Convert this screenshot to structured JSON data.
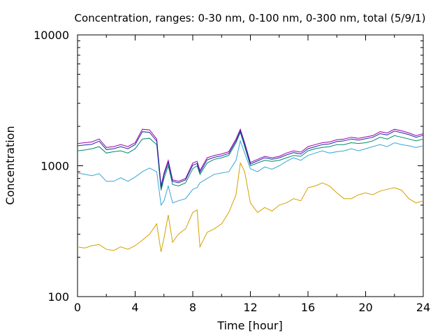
{
  "chart_data": {
    "type": "line",
    "title": "Concentration, ranges: 0-30 nm, 0-100 nm, 0-300 nm, total (5/9/1)",
    "xlabel": "Time [hour]",
    "ylabel": "Concentration",
    "xlim": [
      0,
      24
    ],
    "ylim": [
      100,
      10000
    ],
    "yscale": "log",
    "grid": false,
    "legend": "none",
    "x_ticks": [
      0,
      4,
      8,
      12,
      16,
      20,
      24
    ],
    "x_tick_labels": [
      "0",
      "4",
      "8",
      "12",
      "16",
      "20",
      "24"
    ],
    "y_ticks": [
      100,
      1000,
      10000
    ],
    "y_tick_labels": [
      "100",
      "1000",
      "10000"
    ],
    "colors": [
      "#d4a000",
      "#35a5d8",
      "#008a6a",
      "#9a00b0",
      "#1d2aa0"
    ],
    "x": [
      0,
      0.5,
      1,
      1.5,
      2,
      2.5,
      3,
      3.5,
      4,
      4.5,
      5,
      5.5,
      5.8,
      6,
      6.3,
      6.6,
      7,
      7.5,
      8,
      8.3,
      8.5,
      9,
      9.5,
      10,
      10.5,
      11,
      11.3,
      11.6,
      12,
      12.5,
      13,
      13.5,
      14,
      14.5,
      15,
      15.5,
      16,
      16.5,
      17,
      17.5,
      18,
      18.5,
      19,
      19.5,
      20,
      20.5,
      21,
      21.5,
      22,
      22.5,
      23,
      23.5,
      24
    ],
    "series": [
      {
        "values": [
          240,
          235,
          245,
          250,
          230,
          225,
          240,
          230,
          245,
          270,
          300,
          360,
          220,
          280,
          420,
          260,
          300,
          330,
          440,
          460,
          240,
          310,
          330,
          360,
          440,
          600,
          1050,
          900,
          520,
          440,
          480,
          450,
          500,
          520,
          560,
          540,
          680,
          700,
          740,
          700,
          620,
          560,
          560,
          600,
          620,
          600,
          640,
          660,
          680,
          650,
          560,
          520,
          540
        ]
      },
      {
        "values": [
          880,
          860,
          840,
          870,
          760,
          760,
          810,
          760,
          820,
          900,
          960,
          900,
          500,
          540,
          700,
          520,
          540,
          560,
          660,
          680,
          740,
          800,
          860,
          880,
          900,
          1100,
          1550,
          1250,
          950,
          900,
          980,
          940,
          1000,
          1080,
          1150,
          1100,
          1200,
          1250,
          1300,
          1250,
          1280,
          1300,
          1350,
          1300,
          1350,
          1400,
          1450,
          1400,
          1500,
          1450,
          1420,
          1380,
          1420
        ]
      },
      {
        "values": [
          1300,
          1320,
          1350,
          1400,
          1250,
          1280,
          1300,
          1250,
          1350,
          1600,
          1620,
          1450,
          650,
          800,
          1000,
          720,
          700,
          740,
          950,
          1000,
          860,
          1050,
          1120,
          1150,
          1200,
          1500,
          1800,
          1400,
          1000,
          1050,
          1100,
          1080,
          1100,
          1150,
          1200,
          1180,
          1300,
          1350,
          1380,
          1400,
          1450,
          1450,
          1500,
          1480,
          1500,
          1550,
          1650,
          1600,
          1700,
          1650,
          1600,
          1550,
          1600
        ]
      },
      {
        "values": [
          1480,
          1500,
          1520,
          1600,
          1380,
          1400,
          1450,
          1400,
          1500,
          1900,
          1880,
          1600,
          700,
          880,
          1100,
          780,
          760,
          800,
          1050,
          1080,
          920,
          1150,
          1200,
          1230,
          1280,
          1600,
          1900,
          1500,
          1060,
          1120,
          1180,
          1150,
          1180,
          1250,
          1300,
          1270,
          1400,
          1450,
          1500,
          1520,
          1580,
          1600,
          1650,
          1620,
          1660,
          1700,
          1820,
          1780,
          1900,
          1850,
          1780,
          1700,
          1760
        ]
      },
      {
        "values": [
          1420,
          1440,
          1460,
          1540,
          1330,
          1350,
          1400,
          1350,
          1450,
          1820,
          1800,
          1540,
          680,
          850,
          1060,
          760,
          740,
          780,
          1010,
          1040,
          890,
          1110,
          1160,
          1190,
          1240,
          1550,
          1840,
          1450,
          1030,
          1090,
          1150,
          1120,
          1150,
          1210,
          1260,
          1230,
          1350,
          1400,
          1450,
          1470,
          1530,
          1550,
          1600,
          1570,
          1610,
          1650,
          1760,
          1720,
          1840,
          1790,
          1730,
          1650,
          1710
        ]
      }
    ]
  }
}
